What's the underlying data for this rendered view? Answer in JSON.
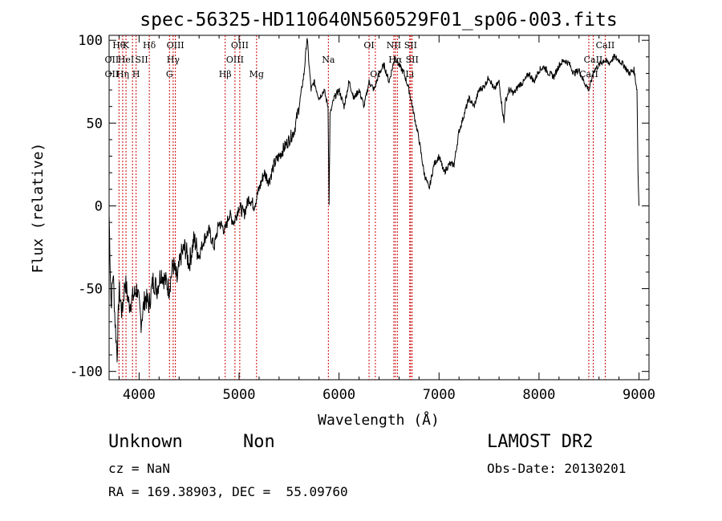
{
  "chart_data": {
    "type": "line",
    "title": "spec-56325-HD110640N560529F01_sp06-003.fits",
    "xlabel": "Wavelength (Å)",
    "ylabel": "Flux (relative)",
    "xlim": [
      3700,
      9100
    ],
    "ylim": [
      -105,
      103
    ],
    "x_ticks": [
      4000,
      5000,
      6000,
      7000,
      8000,
      9000
    ],
    "y_ticks": [
      -100,
      -50,
      0,
      50,
      100
    ],
    "grid": false,
    "line_color": "#000000",
    "marker_color": "#cc0000",
    "series": [
      {
        "x": [
          3700,
          3720,
          3740,
          3760,
          3780,
          3800,
          3830,
          3860,
          3900,
          3940,
          3980,
          4020,
          4060,
          4100,
          4140,
          4180,
          4220,
          4260,
          4300,
          4340,
          4380,
          4420,
          4460,
          4500,
          4550,
          4600,
          4650,
          4700,
          4750,
          4800,
          4860,
          4900,
          4950,
          5000,
          5050,
          5100,
          5150,
          5200,
          5250,
          5300,
          5350,
          5400,
          5450,
          5500,
          5550,
          5600,
          5650,
          5680,
          5700,
          5720,
          5750,
          5800,
          5850,
          5890,
          5900,
          5910,
          5950,
          6000,
          6050,
          6100,
          6150,
          6200,
          6250,
          6300,
          6350,
          6400,
          6450,
          6500,
          6560,
          6600,
          6650,
          6700,
          6750,
          6800,
          6850,
          6900,
          6950,
          7000,
          7050,
          7100,
          7150,
          7200,
          7250,
          7300,
          7350,
          7400,
          7450,
          7500,
          7550,
          7600,
          7650,
          7660,
          7700,
          7750,
          7800,
          7850,
          7900,
          7950,
          8000,
          8050,
          8100,
          8150,
          8200,
          8250,
          8300,
          8350,
          8400,
          8450,
          8500,
          8550,
          8600,
          8650,
          8700,
          8750,
          8800,
          8850,
          8900,
          8950,
          8980,
          8990,
          9000
        ],
        "y": [
          -5,
          -60,
          -40,
          -70,
          -90,
          -50,
          -65,
          -45,
          -60,
          -55,
          -50,
          -70,
          -55,
          -60,
          -45,
          -50,
          -40,
          -45,
          -50,
          -35,
          -45,
          -30,
          -25,
          -35,
          -20,
          -30,
          -20,
          -15,
          -25,
          -10,
          -15,
          -5,
          -10,
          0,
          -5,
          5,
          0,
          10,
          20,
          15,
          25,
          30,
          35,
          40,
          45,
          60,
          80,
          102,
          85,
          70,
          75,
          65,
          70,
          60,
          0,
          55,
          65,
          70,
          60,
          75,
          65,
          70,
          60,
          75,
          70,
          80,
          85,
          75,
          90,
          85,
          80,
          70,
          55,
          40,
          20,
          10,
          25,
          30,
          20,
          25,
          25,
          45,
          55,
          65,
          60,
          70,
          72,
          78,
          70,
          75,
          50,
          62,
          70,
          68,
          73,
          75,
          80,
          75,
          82,
          84,
          80,
          78,
          85,
          88,
          86,
          80,
          82,
          75,
          70,
          82,
          85,
          88,
          86,
          90,
          88,
          85,
          80,
          82,
          70,
          20,
          0
        ]
      }
    ],
    "line_markers": [
      {
        "x": 3799,
        "row": 0,
        "label": "Hθ"
      },
      {
        "x": 3836,
        "row": 0,
        "label": "Hη"
      },
      {
        "x": 3869,
        "row": 0,
        "label": "K"
      },
      {
        "x": 3934,
        "row": 0,
        "label": ""
      },
      {
        "x": 3970,
        "row": 0,
        "label": "H"
      },
      {
        "x": 4102,
        "row": 0,
        "label": "Hδ"
      },
      {
        "x": 4304,
        "row": 0,
        "label": "G"
      },
      {
        "x": 4341,
        "row": 0,
        "label": "Hγ"
      },
      {
        "x": 4363,
        "row": 0,
        "label": "OIII"
      },
      {
        "x": 4861,
        "row": 0,
        "label": "Hβ"
      },
      {
        "x": 4959,
        "row": 0,
        "label": "OIII"
      },
      {
        "x": 5007,
        "row": 0,
        "label": "OIII"
      },
      {
        "x": 5175,
        "row": 0,
        "label": "Mg"
      },
      {
        "x": 5893,
        "row": 0,
        "label": "Na"
      },
      {
        "x": 6300,
        "row": 0,
        "label": "OI"
      },
      {
        "x": 6363,
        "row": 0,
        "label": "OI"
      },
      {
        "x": 6548,
        "row": 0,
        "label": "NII"
      },
      {
        "x": 6563,
        "row": 0,
        "label": "Hα"
      },
      {
        "x": 6583,
        "row": 0,
        "label": "NII"
      },
      {
        "x": 6707,
        "row": 0,
        "label": "Li"
      },
      {
        "x": 6716,
        "row": 0,
        "label": "SII"
      },
      {
        "x": 6731,
        "row": 0,
        "label": "SII"
      },
      {
        "x": 8498,
        "row": 0,
        "label": "CaII"
      },
      {
        "x": 8542,
        "row": 0,
        "label": "CaII"
      },
      {
        "x": 8662,
        "row": 0,
        "label": "CaII"
      }
    ],
    "line_labels": [
      {
        "x": 3799,
        "row": 0,
        "text": "Hθ"
      },
      {
        "x": 3868,
        "row": 0,
        "text": "K"
      },
      {
        "x": 3727,
        "row": 1,
        "text": "OII"
      },
      {
        "x": 3869,
        "row": 1,
        "text": "HeI"
      },
      {
        "x": 3727,
        "row": 2,
        "text": "OII"
      },
      {
        "x": 3836,
        "row": 2,
        "text": "Hη"
      },
      {
        "x": 3970,
        "row": 2,
        "text": "H"
      },
      {
        "x": 4026,
        "row": 1,
        "text": "SII"
      },
      {
        "x": 4102,
        "row": 0,
        "text": "Hδ"
      },
      {
        "x": 4363,
        "row": 0,
        "text": "OIII"
      },
      {
        "x": 4341,
        "row": 1,
        "text": "Hγ"
      },
      {
        "x": 4304,
        "row": 2,
        "text": "G"
      },
      {
        "x": 5007,
        "row": 0,
        "text": "OIII"
      },
      {
        "x": 4959,
        "row": 1,
        "text": "OIII"
      },
      {
        "x": 4861,
        "row": 2,
        "text": "Hβ"
      },
      {
        "x": 5175,
        "row": 2,
        "text": "Mg"
      },
      {
        "x": 5893,
        "row": 1,
        "text": "Na"
      },
      {
        "x": 6300,
        "row": 0,
        "text": "OI"
      },
      {
        "x": 6363,
        "row": 2,
        "text": "OI"
      },
      {
        "x": 6548,
        "row": 0,
        "text": "NII"
      },
      {
        "x": 6716,
        "row": 0,
        "text": "SII"
      },
      {
        "x": 6563,
        "row": 1,
        "text": "Hα"
      },
      {
        "x": 6731,
        "row": 1,
        "text": "SII"
      },
      {
        "x": 6707,
        "row": 2,
        "text": "Li"
      },
      {
        "x": 8662,
        "row": 0,
        "text": "CaII"
      },
      {
        "x": 8542,
        "row": 1,
        "text": "CaII"
      },
      {
        "x": 8498,
        "row": 2,
        "text": "CaII"
      }
    ]
  },
  "info": {
    "object_class": "Unknown",
    "subclass": "Non",
    "survey": "LAMOST DR2",
    "redshift": "cz = NaN",
    "obs_date": "Obs-Date: 20130201",
    "coords": "RA = 169.38903, DEC =  55.09760"
  }
}
